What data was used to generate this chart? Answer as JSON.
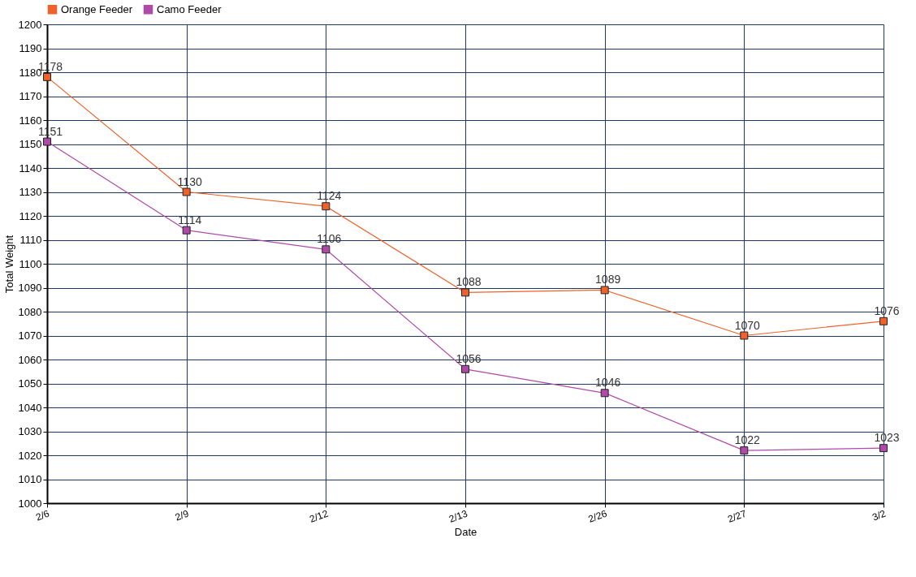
{
  "chart_data": {
    "type": "line",
    "xlabel": "Date",
    "ylabel": "Total Weight",
    "categories": [
      "2/6",
      "2/9",
      "2/12",
      "2/13",
      "2/26",
      "2/27",
      "3/2"
    ],
    "series": [
      {
        "name": "Orange Feeder",
        "color": "#f0622a",
        "values": [
          1178,
          1130,
          1124,
          1088,
          1089,
          1070,
          1076
        ]
      },
      {
        "name": "Camo Feeder",
        "color": "#b04aa8",
        "values": [
          1151,
          1114,
          1106,
          1056,
          1046,
          1022,
          1023
        ]
      }
    ],
    "ylim": [
      1000,
      1200
    ],
    "yticks": [
      1000,
      1010,
      1020,
      1030,
      1040,
      1050,
      1060,
      1070,
      1080,
      1090,
      1100,
      1110,
      1120,
      1130,
      1140,
      1150,
      1160,
      1170,
      1180,
      1190,
      1200
    ],
    "grid": true,
    "legend": "top left",
    "marker": "square",
    "line_style": "solid",
    "data_labels": true
  }
}
